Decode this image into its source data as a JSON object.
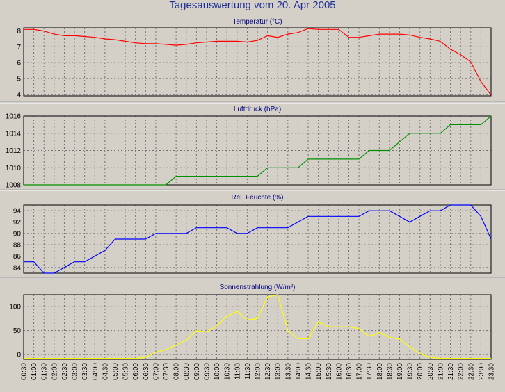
{
  "title": "Tagesauswertung vom 20. Apr 2005",
  "x_labels": [
    "00:30",
    "01:00",
    "01:30",
    "02:00",
    "02:30",
    "03:00",
    "03:30",
    "04:00",
    "04:30",
    "05:00",
    "05:30",
    "06:00",
    "06:30",
    "07:00",
    "07:30",
    "08:00",
    "08:30",
    "09:00",
    "09:30",
    "10:00",
    "10:30",
    "11:00",
    "11:30",
    "12:00",
    "12:30",
    "13:00",
    "13:30",
    "14:00",
    "14:30",
    "15:00",
    "15:30",
    "16:00",
    "16:30",
    "17:00",
    "17:30",
    "18:00",
    "18:30",
    "19:00",
    "19:30",
    "20:00",
    "20:30",
    "21:00",
    "21:30",
    "22:00",
    "22:30",
    "23:00",
    "23:30"
  ],
  "chart_data": [
    {
      "type": "line",
      "title": "Temperatur (°C)",
      "color": "#ff0000",
      "ylim": [
        3.9,
        8.2
      ],
      "yticks": [
        4,
        5,
        6,
        7,
        8
      ],
      "values": [
        8.1,
        8.1,
        8.0,
        7.8,
        7.7,
        7.7,
        7.65,
        7.6,
        7.5,
        7.45,
        7.35,
        7.25,
        7.2,
        7.2,
        7.15,
        7.1,
        7.15,
        7.25,
        7.3,
        7.35,
        7.35,
        7.35,
        7.3,
        7.4,
        7.7,
        7.6,
        7.8,
        7.9,
        8.15,
        8.1,
        8.1,
        8.1,
        7.6,
        7.6,
        7.7,
        7.8,
        7.8,
        7.8,
        7.75,
        7.6,
        7.5,
        7.35,
        6.85,
        6.5,
        6.05,
        4.8,
        3.95
      ]
    },
    {
      "type": "line",
      "title": "Luftdruck (hPa)",
      "color": "#009000",
      "ylim": [
        1008,
        1016
      ],
      "yticks": [
        1008,
        1010,
        1012,
        1014,
        1016
      ],
      "values": [
        1008,
        1008,
        1008,
        1008,
        1008,
        1008,
        1008,
        1008,
        1008,
        1008,
        1008,
        1008,
        1008,
        1008,
        1008,
        1009,
        1009,
        1009,
        1009,
        1009,
        1009,
        1009,
        1009,
        1009,
        1010,
        1010,
        1010,
        1010,
        1011,
        1011,
        1011,
        1011,
        1011,
        1011,
        1012,
        1012,
        1012,
        1013,
        1014,
        1014,
        1014,
        1014,
        1015,
        1015,
        1015,
        1015,
        1016
      ]
    },
    {
      "type": "line",
      "title": "Rel. Feuchte (%)",
      "color": "#0000ff",
      "ylim": [
        83,
        95
      ],
      "yticks": [
        84,
        86,
        88,
        90,
        92,
        94
      ],
      "values": [
        85,
        85,
        83,
        83,
        84,
        85,
        85,
        86,
        87,
        89,
        89,
        89,
        89,
        90,
        90,
        90,
        90,
        91,
        91,
        91,
        91,
        90,
        90,
        91,
        91,
        91,
        91,
        92,
        93,
        93,
        93,
        93,
        93,
        93,
        94,
        94,
        94,
        93,
        92,
        93,
        94,
        94,
        95,
        95,
        95,
        93,
        89
      ]
    },
    {
      "type": "line",
      "title": "Sonnenstrahlung (W/m²)",
      "color": "#ffff00",
      "ylim": [
        -10,
        125
      ],
      "yticks": [
        0,
        50,
        100
      ],
      "values": [
        -8,
        -8,
        -8,
        -8,
        -8,
        -8,
        -8,
        -8,
        -8,
        -8,
        -8,
        -8,
        -6,
        5,
        10,
        20,
        30,
        50,
        47,
        60,
        80,
        90,
        72,
        75,
        120,
        125,
        50,
        33,
        33,
        68,
        58,
        58,
        58,
        54,
        38,
        46,
        36,
        32,
        16,
        2,
        -6,
        -8,
        -8,
        -8,
        -8,
        -8,
        -8
      ]
    }
  ]
}
